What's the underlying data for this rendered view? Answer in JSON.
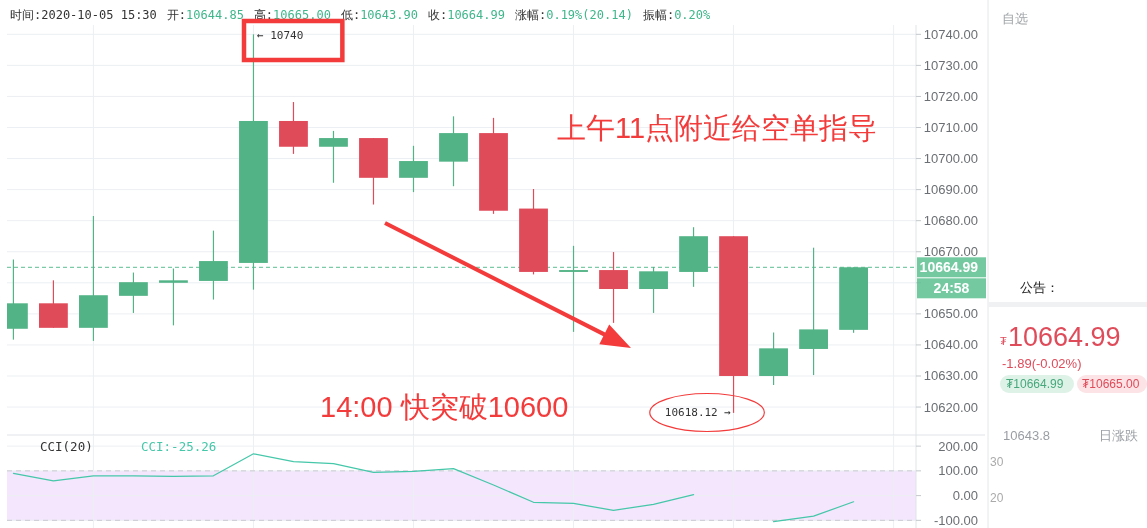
{
  "chart_data": [
    {
      "type": "candlestick",
      "subtitle": "时间:2020-10-05 15:30  开:10644.85  高:10665.00  低:10643.90  收:10664.99  涨幅:0.19%(20.14)  振幅:0.20%",
      "categories": [
        null,
        null,
        null,
        null,
        null,
        null,
        null,
        null,
        null,
        null,
        null,
        null,
        null,
        null,
        null,
        null,
        null,
        null,
        null,
        null,
        null,
        null
      ],
      "ohlc": [
        [
          10645.2,
          10667.5,
          10641.7,
          10653.4
        ],
        [
          10653.4,
          10660.8,
          10645.5,
          10645.5
        ],
        [
          10645.5,
          10681.5,
          10641.3,
          10656.0
        ],
        [
          10655.8,
          10663.3,
          10650.3,
          10660.2
        ],
        [
          10660.0,
          10664.6,
          10646.3,
          10660.8
        ],
        [
          10660.6,
          10676.8,
          10654.6,
          10667.0
        ],
        [
          10666.4,
          10740,
          10657.8,
          10712.1
        ],
        [
          10712.1,
          10718.2,
          10701.5,
          10703.8
        ],
        [
          10703.8,
          10708.9,
          10692.2,
          10706.6
        ],
        [
          10706.6,
          10706.6,
          10685.2,
          10693.8
        ],
        [
          10693.8,
          10704.1,
          10689.2,
          10699.2
        ],
        [
          10699.0,
          10713.6,
          10691.1,
          10708.2
        ],
        [
          10708.2,
          10713.1,
          10682.2,
          10683.2
        ],
        [
          10683.9,
          10690.2,
          10662.7,
          10663.5
        ],
        [
          10663.5,
          10671.9,
          10644.2,
          10664.1
        ],
        [
          10664.1,
          10669.9,
          10647.1,
          10658.0
        ],
        [
          10658.0,
          10665.1,
          10650.3,
          10663.7
        ],
        [
          10663.5,
          10677.9,
          10658.7,
          10675.0
        ],
        [
          10675.0,
          10675.0,
          10618.12,
          10630.0
        ],
        [
          10630.0,
          10644.0,
          10627.1,
          10638.9
        ],
        [
          10638.7,
          10671.3,
          10630.3,
          10645.0
        ],
        [
          10644.85,
          10665.0,
          10643.9,
          10664.99
        ]
      ],
      "colors": [
        "#52b386",
        "#e04b5a",
        "#52b386",
        "#52b386",
        "#52b386",
        "#52b386",
        "#52b386",
        "#e04b5a",
        "#52b386",
        "#e04b5a",
        "#52b386",
        "#52b386",
        "#e04b5a",
        "#e04b5a",
        "#52b386",
        "#e04b5a",
        "#52b386",
        "#52b386",
        "#e04b5a",
        "#52b386",
        "#52b386",
        "#52b386"
      ],
      "ylim": [
        10611,
        10743
      ],
      "yticks": [
        {
          "value": 10620,
          "label": "10620.00"
        },
        {
          "value": 10630,
          "label": "10630.00"
        },
        {
          "value": 10640,
          "label": "10640.00"
        },
        {
          "value": 10650,
          "label": "10650.00"
        },
        {
          "value": 10660,
          "label": null
        },
        {
          "value": 10670,
          "label": "10670.00"
        },
        {
          "value": 10680,
          "label": "10680.00"
        },
        {
          "value": 10690,
          "label": "10690.00"
        },
        {
          "value": 10700,
          "label": "10700.00"
        },
        {
          "value": 10710,
          "label": "10710.00"
        },
        {
          "value": 10720,
          "label": "10720.00"
        },
        {
          "value": 10730,
          "label": "10730.00"
        },
        {
          "value": 10740,
          "label": "10740.00"
        }
      ],
      "grid": true,
      "ref_lines": [
        {
          "axis": "y",
          "value": 10664.99,
          "label": "10664.99",
          "color": "#5cbf91",
          "line_style": "dashed"
        }
      ],
      "annotations": [
        "← 10740",
        "10618.12 →",
        "24:58",
        "上午11点附近给空单指导",
        "14:00 快突破10600"
      ]
    },
    {
      "type": "line",
      "title": "CCI(20)",
      "categories": [
        null,
        null,
        null,
        null,
        null,
        null,
        null,
        null,
        null,
        null,
        null,
        null,
        null,
        null,
        null,
        null,
        null,
        null,
        null,
        null,
        null,
        null
      ],
      "values": [
        90,
        60,
        80,
        80,
        78,
        80,
        169,
        137,
        129,
        94,
        98,
        109,
        43,
        -27,
        -31,
        -60,
        -35,
        4,
        null,
        -105,
        -83,
        -25.26
      ],
      "color": "#45c7a9",
      "ylim": [
        -131,
        245
      ],
      "yticks": [
        {
          "value": 200,
          "label": "200.00"
        },
        {
          "value": 100,
          "label": "100.00"
        },
        {
          "value": 0,
          "label": "0.00"
        },
        {
          "value": -100,
          "label": "-100.00"
        }
      ],
      "grid": true,
      "bands": [
        {
          "axis": "y",
          "from": -100,
          "to": 100,
          "color": "#f3e6fd"
        }
      ],
      "annotations": [
        "CCI:-25.26"
      ]
    },
    {
      "type": "other",
      "title": "自选",
      "annotations": [
        "公告：",
        "₮",
        "10664.99",
        "-1.89(-0.02%)",
        "₮10664.99",
        "₮10665.00",
        "10643.8",
        "日涨跌",
        "30",
        "20"
      ]
    }
  ]
}
